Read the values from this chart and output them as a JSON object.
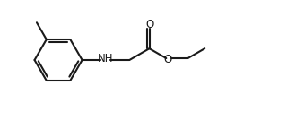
{
  "bg_color": "#ffffff",
  "line_color": "#1a1a1a",
  "line_width": 1.5,
  "font_size_label": 8.5,
  "figsize": [
    3.2,
    1.34
  ],
  "dpi": 100,
  "xlim": [
    0.0,
    10.5
  ],
  "ylim": [
    -2.2,
    2.2
  ]
}
